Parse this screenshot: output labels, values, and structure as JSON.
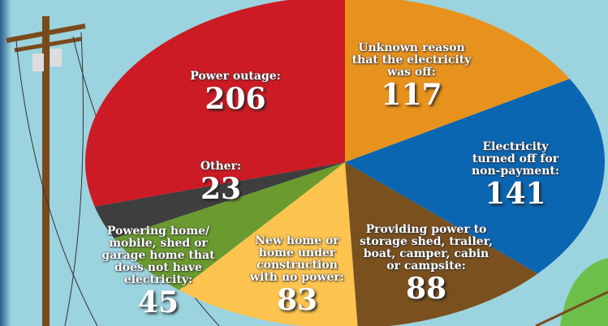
{
  "chart_data": {
    "type": "pie",
    "categories": [
      "Unknown reason that the electricity was off:",
      "Electricity turned off for non-payment:",
      "Providing power to storage shed, trailer, boat, camper, cabin or campsite:",
      "New home or home under construction with no power:",
      "Powering home/ mobile, shed or garage home that does not have electricity:",
      "Other:",
      "Power outage:"
    ],
    "values": [
      117,
      141,
      88,
      83,
      45,
      23,
      206
    ],
    "colors": [
      "#e8921e",
      "#0b66b2",
      "#7b501f",
      "#fcc44f",
      "#6b9b2f",
      "#3e3e3e",
      "#cc1b24"
    ]
  }
}
